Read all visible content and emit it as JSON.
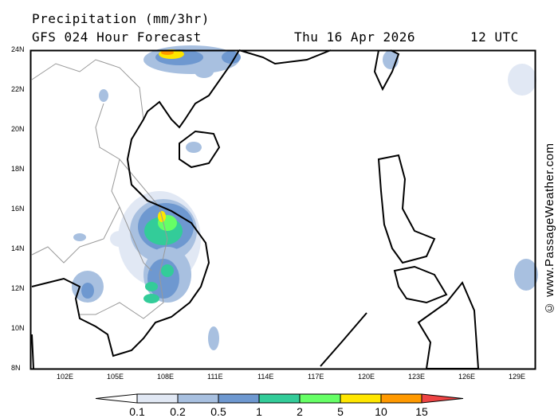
{
  "title": "Precipitation (mm/3hr)",
  "subtitle": "GFS 024 Hour Forecast",
  "date": "Thu 16 Apr 2026",
  "time": "12 UTC",
  "credit": "© www.PassageWeather.com",
  "map": {
    "lat_ticks": [
      "24N",
      "22N",
      "20N",
      "18N",
      "16N",
      "14N",
      "12N",
      "10N",
      "8N"
    ],
    "lon_ticks": [
      "102E",
      "105E",
      "108E",
      "111E",
      "114E",
      "117E",
      "120E",
      "123E",
      "126E",
      "129E"
    ],
    "extent": {
      "lon": [
        100,
        130
      ],
      "lat": [
        8,
        24
      ]
    }
  },
  "legend": {
    "labels": [
      "0.1",
      "0.2",
      "0.5",
      "1",
      "2",
      "5",
      "10",
      "15"
    ],
    "colors": [
      "#ffffff",
      "#e1e8f4",
      "#a8c0e0",
      "#6e98d0",
      "#33cc99",
      "#66ff66",
      "#ffe600",
      "#ff9900",
      "#ee4444"
    ]
  }
}
